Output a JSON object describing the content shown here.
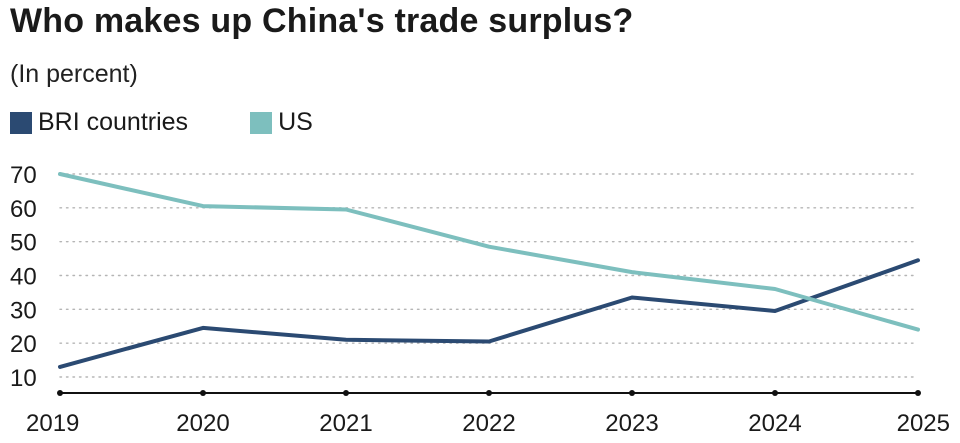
{
  "title": "Who makes up China's trade surplus?",
  "subtitle": "(In percent)",
  "chart_data": {
    "type": "line",
    "x": [
      "2019",
      "2020",
      "2021",
      "2022",
      "2023",
      "2024",
      "2025"
    ],
    "series": [
      {
        "name": "BRI countries",
        "color": "#2b4a72",
        "values": [
          13,
          24.5,
          21,
          20.5,
          33.5,
          29.5,
          44.5
        ]
      },
      {
        "name": "US",
        "color": "#7dbfbe",
        "values": [
          70,
          60.5,
          59.5,
          48.5,
          41,
          36,
          24
        ]
      }
    ],
    "ylim": [
      5,
      72
    ],
    "yticks": [
      10,
      20,
      30,
      40,
      50,
      60,
      70
    ],
    "grid": "horizontal dotted",
    "legend_position": "top-left"
  }
}
